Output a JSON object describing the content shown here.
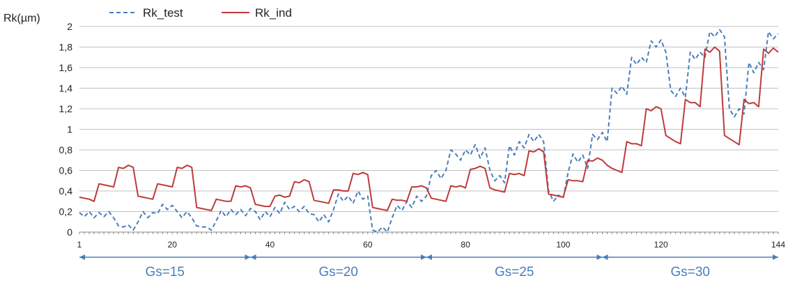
{
  "chart_data": {
    "type": "line",
    "ylabel": "Rk(µm)",
    "ylim": [
      0,
      2
    ],
    "ytick_values": [
      0,
      0.2,
      0.4,
      0.6,
      0.8,
      1,
      1.2,
      1.4,
      1.6,
      1.8,
      2
    ],
    "ytick_labels": [
      "0",
      "0,2",
      "0,4",
      "0,6",
      "0,8",
      "1",
      "1,2",
      "1,4",
      "1,6",
      "1,8",
      "2"
    ],
    "xlim": [
      1,
      144
    ],
    "xtick_values": [
      1,
      20,
      40,
      60,
      80,
      100,
      120,
      144
    ],
    "xtick_labels": [
      "1",
      "20",
      "40",
      "60",
      "80",
      "100",
      "120",
      "144"
    ],
    "grid": "horizontal",
    "legend_position": "top-left",
    "series": [
      {
        "name": "Rk_test",
        "color": "#4a7ebb",
        "style": "dashed",
        "x": [
          1,
          2,
          3,
          4,
          5,
          6,
          7,
          8,
          9,
          10,
          11,
          12,
          13,
          14,
          15,
          16,
          17,
          18,
          19,
          20,
          21,
          22,
          23,
          24,
          25,
          26,
          27,
          28,
          29,
          30,
          31,
          32,
          33,
          34,
          35,
          36,
          37,
          38,
          39,
          40,
          41,
          42,
          43,
          44,
          45,
          46,
          47,
          48,
          49,
          50,
          51,
          52,
          53,
          54,
          55,
          56,
          57,
          58,
          59,
          60,
          61,
          62,
          63,
          64,
          65,
          66,
          67,
          68,
          69,
          70,
          71,
          72,
          73,
          74,
          75,
          76,
          77,
          78,
          79,
          80,
          81,
          82,
          83,
          84,
          85,
          86,
          87,
          88,
          89,
          90,
          91,
          92,
          93,
          94,
          95,
          96,
          97,
          98,
          99,
          100,
          101,
          102,
          103,
          104,
          105,
          106,
          107,
          108,
          109,
          110,
          111,
          112,
          113,
          114,
          115,
          116,
          117,
          118,
          119,
          120,
          121,
          122,
          123,
          124,
          125,
          126,
          127,
          128,
          129,
          130,
          131,
          132,
          133,
          134,
          135,
          136,
          137,
          138,
          139,
          140,
          141,
          142,
          143,
          144
        ],
        "values": [
          0.19,
          0.15,
          0.2,
          0.14,
          0.19,
          0.15,
          0.2,
          0.14,
          0.06,
          0.05,
          0.07,
          0.02,
          0.1,
          0.2,
          0.14,
          0.19,
          0.18,
          0.27,
          0.22,
          0.26,
          0.2,
          0.14,
          0.2,
          0.14,
          0.06,
          0.05,
          0.05,
          0.02,
          0.11,
          0.21,
          0.15,
          0.22,
          0.17,
          0.22,
          0.16,
          0.23,
          0.2,
          0.12,
          0.2,
          0.15,
          0.24,
          0.18,
          0.29,
          0.22,
          0.25,
          0.2,
          0.25,
          0.18,
          0.17,
          0.1,
          0.17,
          0.1,
          0.22,
          0.37,
          0.3,
          0.35,
          0.28,
          0.4,
          0.32,
          0.35,
          0.02,
          0.0,
          0.05,
          0.0,
          0.14,
          0.26,
          0.21,
          0.3,
          0.24,
          0.35,
          0.3,
          0.35,
          0.55,
          0.6,
          0.52,
          0.6,
          0.8,
          0.76,
          0.7,
          0.8,
          0.75,
          0.85,
          0.72,
          0.82,
          0.6,
          0.5,
          0.55,
          0.48,
          0.84,
          0.75,
          0.88,
          0.82,
          0.95,
          0.88,
          0.95,
          0.88,
          0.4,
          0.3,
          0.36,
          0.33,
          0.58,
          0.76,
          0.68,
          0.75,
          0.62,
          0.95,
          0.9,
          0.97,
          0.88,
          1.4,
          1.35,
          1.42,
          1.34,
          1.7,
          1.63,
          1.7,
          1.65,
          1.86,
          1.8,
          1.87,
          1.75,
          1.38,
          1.32,
          1.4,
          1.31,
          1.75,
          1.68,
          1.75,
          1.7,
          1.95,
          1.9,
          1.97,
          1.9,
          1.2,
          1.12,
          1.2,
          1.15,
          1.65,
          1.55,
          1.65,
          1.58,
          1.95,
          1.88,
          1.93
        ]
      },
      {
        "name": "Rk_ind",
        "color": "#be3a3a",
        "style": "solid",
        "x": [
          1,
          2,
          3,
          4,
          5,
          6,
          7,
          8,
          9,
          10,
          11,
          12,
          13,
          14,
          15,
          16,
          17,
          18,
          19,
          20,
          21,
          22,
          23,
          24,
          25,
          26,
          27,
          28,
          29,
          30,
          31,
          32,
          33,
          34,
          35,
          36,
          37,
          38,
          39,
          40,
          41,
          42,
          43,
          44,
          45,
          46,
          47,
          48,
          49,
          50,
          51,
          52,
          53,
          54,
          55,
          56,
          57,
          58,
          59,
          60,
          61,
          62,
          63,
          64,
          65,
          66,
          67,
          68,
          69,
          70,
          71,
          72,
          73,
          74,
          75,
          76,
          77,
          78,
          79,
          80,
          81,
          82,
          83,
          84,
          85,
          86,
          87,
          88,
          89,
          90,
          91,
          92,
          93,
          94,
          95,
          96,
          97,
          98,
          99,
          100,
          101,
          102,
          103,
          104,
          105,
          106,
          107,
          108,
          109,
          110,
          111,
          112,
          113,
          114,
          115,
          116,
          117,
          118,
          119,
          120,
          121,
          122,
          123,
          124,
          125,
          126,
          127,
          128,
          129,
          130,
          131,
          132,
          133,
          134,
          135,
          136,
          137,
          138,
          139,
          140,
          141,
          142,
          143,
          144
        ],
        "values": [
          0.34,
          0.33,
          0.32,
          0.3,
          0.47,
          0.46,
          0.45,
          0.44,
          0.63,
          0.62,
          0.65,
          0.63,
          0.35,
          0.34,
          0.33,
          0.32,
          0.47,
          0.46,
          0.45,
          0.44,
          0.63,
          0.62,
          0.65,
          0.63,
          0.24,
          0.23,
          0.22,
          0.21,
          0.32,
          0.31,
          0.3,
          0.3,
          0.45,
          0.44,
          0.45,
          0.43,
          0.27,
          0.26,
          0.25,
          0.25,
          0.35,
          0.36,
          0.34,
          0.35,
          0.49,
          0.48,
          0.51,
          0.49,
          0.31,
          0.3,
          0.29,
          0.28,
          0.41,
          0.41,
          0.4,
          0.4,
          0.57,
          0.56,
          0.58,
          0.56,
          0.24,
          0.23,
          0.22,
          0.21,
          0.32,
          0.31,
          0.31,
          0.3,
          0.44,
          0.44,
          0.45,
          0.43,
          0.33,
          0.32,
          0.31,
          0.3,
          0.45,
          0.44,
          0.45,
          0.43,
          0.61,
          0.62,
          0.64,
          0.62,
          0.43,
          0.41,
          0.4,
          0.39,
          0.57,
          0.56,
          0.57,
          0.55,
          0.79,
          0.78,
          0.81,
          0.78,
          0.37,
          0.36,
          0.35,
          0.34,
          0.51,
          0.5,
          0.5,
          0.49,
          0.7,
          0.69,
          0.72,
          0.7,
          0.65,
          0.62,
          0.6,
          0.58,
          0.88,
          0.86,
          0.86,
          0.84,
          1.2,
          1.18,
          1.22,
          1.2,
          0.94,
          0.91,
          0.88,
          0.86,
          1.29,
          1.26,
          1.26,
          1.22,
          1.78,
          1.75,
          1.8,
          1.76,
          0.94,
          0.91,
          0.88,
          0.85,
          1.29,
          1.25,
          1.26,
          1.22,
          1.78,
          1.74,
          1.79,
          1.75
        ]
      }
    ],
    "group_ranges": [
      {
        "label": "Gs=15",
        "from": 1,
        "to": 36
      },
      {
        "label": "Gs=20",
        "from": 36,
        "to": 72
      },
      {
        "label": "Gs=25",
        "from": 72,
        "to": 108
      },
      {
        "label": "Gs=30",
        "from": 108,
        "to": 144
      }
    ],
    "colors": {
      "grid": "#c0c0c0",
      "axis": "#888888",
      "tick_text": "#222222",
      "group_arrow": "#4a7ebb",
      "group_text": "#4a7ebb"
    }
  }
}
